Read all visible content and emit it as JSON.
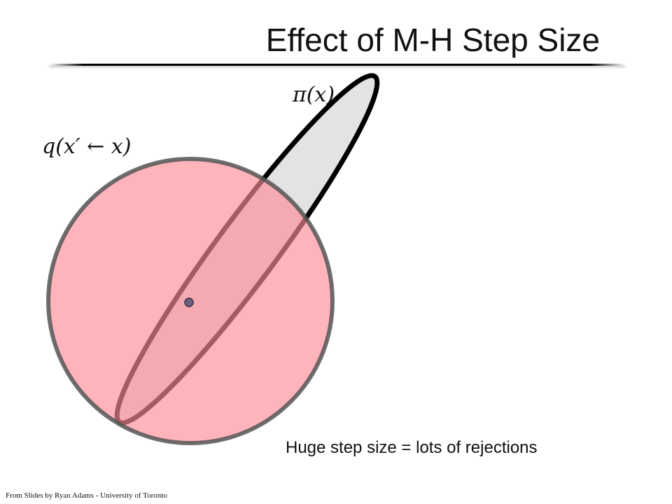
{
  "slide": {
    "title": "Effect of M-H Step Size",
    "caption": "Huge step size = lots of rejections",
    "credit": "From Slides by Ryan Adams - University of Toronto"
  },
  "diagram": {
    "target_label": "π(x)",
    "proposal_label": "q(x′ ← x)",
    "colors": {
      "target_fill": "#e3e3e3",
      "target_stroke": "#000000",
      "proposal_fill": "#ff8c96",
      "proposal_stroke": "#555555",
      "current_point": "#555577",
      "divider": "#000000"
    }
  }
}
